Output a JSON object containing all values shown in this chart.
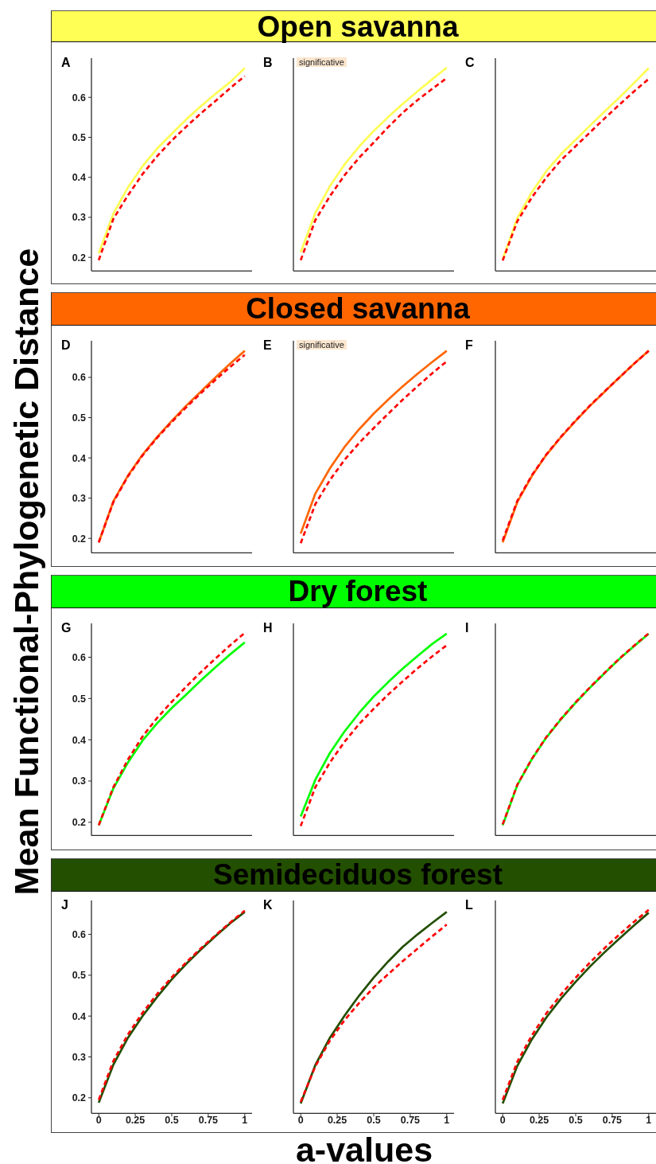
{
  "chart_data": [
    {
      "type": "line",
      "title": "A",
      "x": [
        0,
        0.1,
        0.2,
        0.3,
        0.4,
        0.5,
        0.6,
        0.7,
        0.8,
        0.9,
        1
      ],
      "series": [
        {
          "color": "#ffff55",
          "line_style": "solid",
          "values": [
            0.21,
            0.309,
            0.375,
            0.428,
            0.472,
            0.509,
            0.545,
            0.578,
            0.609,
            0.638,
            0.673
          ]
        },
        {
          "color": "#ff0000",
          "line_style": "dashed",
          "values": [
            0.193,
            0.296,
            0.355,
            0.408,
            0.453,
            0.492,
            0.527,
            0.56,
            0.591,
            0.623,
            0.653
          ]
        }
      ],
      "xlim": [
        -0.05,
        1.05
      ],
      "ylim": [
        0.166,
        0.698
      ],
      "xticks": [
        0,
        0.25,
        0.5,
        0.75,
        1
      ],
      "yticks": [
        0.2,
        0.3,
        0.4,
        0.5,
        0.6
      ],
      "tick_labels": "y"
    },
    {
      "type": "line",
      "title": "B",
      "subtitle": "Open savanna",
      "annotations": [
        "significative"
      ],
      "x": [
        0,
        0.1,
        0.2,
        0.3,
        0.4,
        0.5,
        0.6,
        0.7,
        0.8,
        0.9,
        1
      ],
      "series": [
        {
          "color": "#ffff55",
          "line_style": "solid",
          "values": [
            0.213,
            0.311,
            0.378,
            0.432,
            0.477,
            0.516,
            0.551,
            0.584,
            0.615,
            0.645,
            0.674
          ]
        },
        {
          "color": "#ff0000",
          "line_style": "dashed",
          "values": [
            0.193,
            0.293,
            0.353,
            0.405,
            0.449,
            0.487,
            0.526,
            0.562,
            0.593,
            0.621,
            0.648
          ]
        }
      ],
      "xlim": [
        -0.05,
        1.05
      ],
      "ylim": [
        0.166,
        0.698
      ],
      "xticks": [
        0,
        0.25,
        0.5,
        0.75,
        1
      ],
      "yticks": [
        0.2,
        0.3,
        0.4,
        0.5,
        0.6
      ],
      "tick_labels": false
    },
    {
      "type": "line",
      "title": "C",
      "x": [
        0,
        0.1,
        0.2,
        0.3,
        0.4,
        0.5,
        0.6,
        0.7,
        0.8,
        0.9,
        1
      ],
      "series": [
        {
          "color": "#ffff55",
          "line_style": "solid",
          "values": [
            0.195,
            0.298,
            0.363,
            0.416,
            0.458,
            0.494,
            0.53,
            0.565,
            0.6,
            0.636,
            0.673
          ]
        },
        {
          "color": "#ff0000",
          "line_style": "dashed",
          "values": [
            0.192,
            0.29,
            0.35,
            0.4,
            0.443,
            0.478,
            0.513,
            0.548,
            0.582,
            0.615,
            0.646
          ]
        }
      ],
      "xlim": [
        -0.05,
        1.05
      ],
      "ylim": [
        0.166,
        0.698
      ],
      "xticks": [
        0,
        0.25,
        0.5,
        0.75,
        1
      ],
      "yticks": [
        0.2,
        0.3,
        0.4,
        0.5,
        0.6
      ],
      "tick_labels": false
    },
    {
      "type": "line",
      "title": "D",
      "ylabel": "Mean Functional-Phylogenetic Distance",
      "x": [
        0,
        0.1,
        0.2,
        0.3,
        0.4,
        0.5,
        0.6,
        0.7,
        0.8,
        0.9,
        1
      ],
      "series": [
        {
          "color": "#ff6600",
          "line_style": "solid",
          "values": [
            0.19,
            0.292,
            0.356,
            0.408,
            0.452,
            0.492,
            0.53,
            0.565,
            0.6,
            0.634,
            0.666
          ]
        },
        {
          "color": "#ff0000",
          "line_style": "dashed",
          "values": [
            0.19,
            0.29,
            0.354,
            0.406,
            0.45,
            0.489,
            0.526,
            0.561,
            0.594,
            0.626,
            0.656
          ]
        }
      ],
      "xlim": [
        -0.05,
        1.05
      ],
      "ylim": [
        0.164,
        0.691
      ],
      "xticks": [
        0,
        0.25,
        0.5,
        0.75,
        1
      ],
      "yticks": [
        0.2,
        0.3,
        0.4,
        0.5,
        0.6
      ],
      "tick_labels": "y"
    },
    {
      "type": "line",
      "title": "E",
      "subtitle": "Closed savanna",
      "annotations": [
        "significative"
      ],
      "x": [
        0,
        0.1,
        0.2,
        0.3,
        0.4,
        0.5,
        0.6,
        0.7,
        0.8,
        0.9,
        1
      ],
      "series": [
        {
          "color": "#ff6600",
          "line_style": "solid",
          "values": [
            0.212,
            0.311,
            0.374,
            0.427,
            0.471,
            0.51,
            0.545,
            0.578,
            0.609,
            0.638,
            0.666
          ]
        },
        {
          "color": "#ff0000",
          "line_style": "dashed",
          "values": [
            0.188,
            0.285,
            0.345,
            0.395,
            0.437,
            0.474,
            0.51,
            0.545,
            0.578,
            0.61,
            0.64
          ]
        }
      ],
      "xlim": [
        -0.05,
        1.05
      ],
      "ylim": [
        0.164,
        0.691
      ],
      "xticks": [
        0,
        0.25,
        0.5,
        0.75,
        1
      ],
      "yticks": [
        0.2,
        0.3,
        0.4,
        0.5,
        0.6
      ],
      "tick_labels": false
    },
    {
      "type": "line",
      "title": "F",
      "x": [
        0,
        0.1,
        0.2,
        0.3,
        0.4,
        0.5,
        0.6,
        0.7,
        0.8,
        0.9,
        1
      ],
      "series": [
        {
          "color": "#ff6600",
          "line_style": "solid",
          "values": [
            0.19,
            0.29,
            0.355,
            0.408,
            0.452,
            0.492,
            0.53,
            0.565,
            0.6,
            0.634,
            0.666
          ]
        },
        {
          "color": "#ff0000",
          "line_style": "dashed",
          "values": [
            0.195,
            0.293,
            0.357,
            0.409,
            0.453,
            0.493,
            0.531,
            0.566,
            0.6,
            0.634,
            0.666
          ]
        }
      ],
      "xlim": [
        -0.05,
        1.05
      ],
      "ylim": [
        0.164,
        0.691
      ],
      "xticks": [
        0,
        0.25,
        0.5,
        0.75,
        1
      ],
      "yticks": [
        0.2,
        0.3,
        0.4,
        0.5,
        0.6
      ],
      "tick_labels": false
    },
    {
      "type": "line",
      "title": "G",
      "x": [
        0,
        0.1,
        0.2,
        0.3,
        0.4,
        0.5,
        0.6,
        0.7,
        0.8,
        0.9,
        1
      ],
      "series": [
        {
          "color": "#00ff00",
          "line_style": "solid",
          "values": [
            0.193,
            0.282,
            0.345,
            0.398,
            0.44,
            0.477,
            0.51,
            0.544,
            0.576,
            0.607,
            0.636
          ]
        },
        {
          "color": "#ff0000",
          "line_style": "dashed",
          "values": [
            0.193,
            0.285,
            0.352,
            0.408,
            0.453,
            0.492,
            0.529,
            0.564,
            0.597,
            0.629,
            0.659
          ]
        }
      ],
      "xlim": [
        -0.05,
        1.05
      ],
      "ylim": [
        0.168,
        0.682
      ],
      "xticks": [
        0,
        0.25,
        0.5,
        0.75,
        1
      ],
      "yticks": [
        0.2,
        0.3,
        0.4,
        0.5,
        0.6
      ],
      "tick_labels": "y"
    },
    {
      "type": "line",
      "title": "H",
      "subtitle": "Dry forest",
      "x": [
        0,
        0.1,
        0.2,
        0.3,
        0.4,
        0.5,
        0.6,
        0.7,
        0.8,
        0.9,
        1
      ],
      "series": [
        {
          "color": "#00ff00",
          "line_style": "solid",
          "values": [
            0.214,
            0.303,
            0.368,
            0.42,
            0.465,
            0.505,
            0.54,
            0.573,
            0.603,
            0.632,
            0.657
          ]
        },
        {
          "color": "#ff0000",
          "line_style": "dashed",
          "values": [
            0.191,
            0.285,
            0.345,
            0.395,
            0.438,
            0.475,
            0.51,
            0.542,
            0.573,
            0.602,
            0.629
          ]
        }
      ],
      "xlim": [
        -0.05,
        1.05
      ],
      "ylim": [
        0.168,
        0.682
      ],
      "xticks": [
        0,
        0.25,
        0.5,
        0.75,
        1
      ],
      "yticks": [
        0.2,
        0.3,
        0.4,
        0.5,
        0.6
      ],
      "tick_labels": false
    },
    {
      "type": "line",
      "title": "I",
      "x": [
        0,
        0.1,
        0.2,
        0.3,
        0.4,
        0.5,
        0.6,
        0.7,
        0.8,
        0.9,
        1
      ],
      "series": [
        {
          "color": "#00ff00",
          "line_style": "solid",
          "values": [
            0.193,
            0.29,
            0.353,
            0.406,
            0.45,
            0.49,
            0.527,
            0.562,
            0.596,
            0.627,
            0.657
          ]
        },
        {
          "color": "#ff0000",
          "line_style": "dashed",
          "values": [
            0.195,
            0.291,
            0.354,
            0.407,
            0.451,
            0.491,
            0.528,
            0.563,
            0.597,
            0.628,
            0.658
          ]
        }
      ],
      "xlim": [
        -0.05,
        1.05
      ],
      "ylim": [
        0.168,
        0.682
      ],
      "xticks": [
        0,
        0.25,
        0.5,
        0.75,
        1
      ],
      "yticks": [
        0.2,
        0.3,
        0.4,
        0.5,
        0.6
      ],
      "tick_labels": false
    },
    {
      "type": "line",
      "title": "J",
      "x": [
        0,
        0.1,
        0.2,
        0.3,
        0.4,
        0.5,
        0.6,
        0.7,
        0.8,
        0.9,
        1
      ],
      "series": [
        {
          "color": "#234f00",
          "line_style": "solid",
          "values": [
            0.188,
            0.281,
            0.347,
            0.4,
            0.447,
            0.49,
            0.528,
            0.563,
            0.596,
            0.627,
            0.655
          ]
        },
        {
          "color": "#ff0000",
          "line_style": "dashed",
          "values": [
            0.195,
            0.29,
            0.355,
            0.408,
            0.454,
            0.495,
            0.532,
            0.566,
            0.598,
            0.629,
            0.658
          ]
        }
      ],
      "xlim": [
        -0.05,
        1.05
      ],
      "ylim": [
        0.162,
        0.683
      ],
      "xticks": [
        0,
        0.25,
        0.5,
        0.75,
        1
      ],
      "yticks": [
        0.2,
        0.3,
        0.4,
        0.5,
        0.6
      ]
    },
    {
      "type": "line",
      "title": "K",
      "subtitle": "Semideciduos forest",
      "xlabel": "a-values",
      "x": [
        0,
        0.1,
        0.2,
        0.3,
        0.4,
        0.5,
        0.6,
        0.7,
        0.8,
        0.9,
        1
      ],
      "series": [
        {
          "color": "#234f00",
          "line_style": "solid",
          "values": [
            0.186,
            0.28,
            0.347,
            0.401,
            0.45,
            0.494,
            0.534,
            0.57,
            0.6,
            0.628,
            0.655
          ]
        },
        {
          "color": "#ff0000",
          "line_style": "dashed",
          "values": [
            0.19,
            0.277,
            0.34,
            0.39,
            0.432,
            0.47,
            0.503,
            0.535,
            0.565,
            0.595,
            0.624
          ]
        }
      ],
      "xlim": [
        -0.05,
        1.05
      ],
      "ylim": [
        0.162,
        0.683
      ],
      "xticks": [
        0,
        0.25,
        0.5,
        0.75,
        1
      ],
      "yticks": [
        0.2,
        0.3,
        0.4,
        0.5,
        0.6
      ],
      "tick_labels": "x"
    },
    {
      "type": "line",
      "title": "L",
      "x": [
        0,
        0.1,
        0.2,
        0.3,
        0.4,
        0.5,
        0.6,
        0.7,
        0.8,
        0.9,
        1
      ],
      "series": [
        {
          "color": "#234f00",
          "line_style": "solid",
          "values": [
            0.186,
            0.278,
            0.343,
            0.397,
            0.443,
            0.484,
            0.522,
            0.557,
            0.59,
            0.622,
            0.653
          ]
        },
        {
          "color": "#ff0000",
          "line_style": "dashed",
          "values": [
            0.195,
            0.288,
            0.353,
            0.407,
            0.453,
            0.494,
            0.532,
            0.567,
            0.6,
            0.631,
            0.66
          ]
        }
      ],
      "xlim": [
        -0.05,
        1.05
      ],
      "ylim": [
        0.162,
        0.683
      ],
      "xticks": [
        0,
        0.25,
        0.5,
        0.75,
        1
      ],
      "yticks": [
        0.2,
        0.3,
        0.4,
        0.5,
        0.6
      ],
      "tick_labels": "x"
    }
  ]
}
